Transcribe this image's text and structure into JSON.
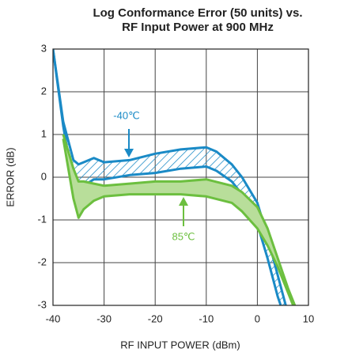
{
  "chart_data": {
    "type": "band",
    "title": [
      "Log Conformance Error (50 units) vs.",
      "RF Input Power at 900 MHz"
    ],
    "xlabel": "RF INPUT POWER (dBm)",
    "ylabel": "ERROR (dB)",
    "xlim": [
      -40,
      10
    ],
    "ylim": [
      -3,
      3
    ],
    "xticks": [
      -40,
      -30,
      -20,
      -10,
      0,
      10
    ],
    "yticks": [
      -3,
      -2,
      -1,
      0,
      1,
      2,
      3
    ],
    "grid": true,
    "series": [
      {
        "name": "-40℃",
        "color": "#1a8ac6",
        "hatch": true,
        "x": [
          -40,
          -38,
          -36,
          -35,
          -34,
          -32,
          -30,
          -25,
          -20,
          -15,
          -10,
          -8,
          -5,
          -3,
          0,
          2,
          4,
          6
        ],
        "upper": [
          3.0,
          1.3,
          0.4,
          0.3,
          0.35,
          0.45,
          0.35,
          0.4,
          0.55,
          0.65,
          0.7,
          0.6,
          0.3,
          0.0,
          -0.6,
          -1.4,
          -2.3,
          -3.2
        ],
        "lower": [
          3.0,
          1.2,
          -0.2,
          -0.3,
          -0.2,
          -0.05,
          -0.05,
          0.05,
          0.1,
          0.2,
          0.25,
          0.15,
          -0.1,
          -0.4,
          -1.1,
          -1.9,
          -2.8,
          -3.5
        ]
      },
      {
        "name": "85℃",
        "color": "#6cbf3f",
        "fill": "#b8de9a",
        "hatch": false,
        "x": [
          -38,
          -36,
          -35,
          -34,
          -32,
          -30,
          -25,
          -20,
          -15,
          -10,
          -5,
          -3,
          0,
          2,
          4,
          6,
          8
        ],
        "upper": [
          1.0,
          0.2,
          -0.1,
          -0.1,
          -0.15,
          -0.2,
          -0.15,
          -0.1,
          -0.1,
          -0.05,
          -0.2,
          -0.35,
          -0.7,
          -1.2,
          -1.9,
          -2.6,
          -3.2
        ],
        "lower": [
          0.9,
          -0.5,
          -0.95,
          -0.75,
          -0.55,
          -0.45,
          -0.4,
          -0.4,
          -0.4,
          -0.45,
          -0.6,
          -0.8,
          -1.2,
          -1.6,
          -2.1,
          -2.7,
          -3.3
        ]
      }
    ]
  }
}
